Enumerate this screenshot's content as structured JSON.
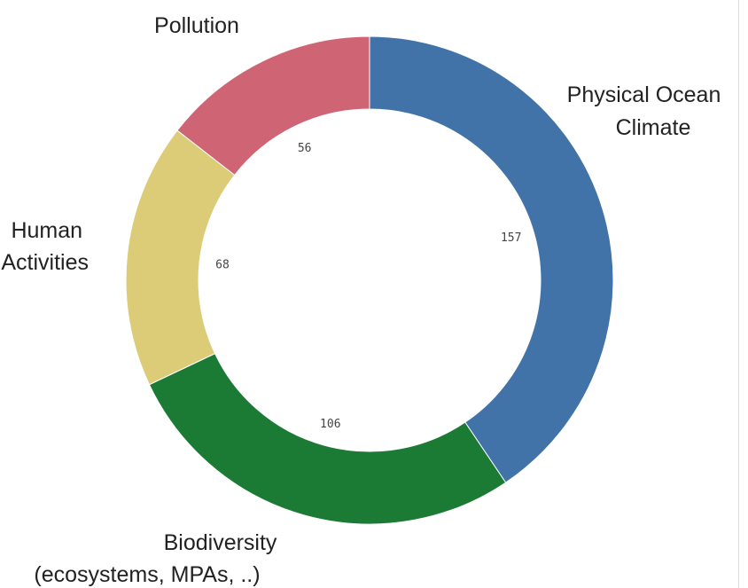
{
  "chart_data": {
    "type": "pie",
    "variant": "donut",
    "categories": [
      "Physical Ocean Climate",
      "Biodiversity (ecosystems, MPAs, ..)",
      "Human Activities",
      "Pollution"
    ],
    "values": [
      157,
      106,
      68,
      56
    ],
    "colors": [
      "#4273a8",
      "#1b7a34",
      "#dccc78",
      "#cf6474"
    ],
    "labels": [
      [
        "Physical Ocean",
        "Climate"
      ],
      [
        "Biodiversity",
        "(ecosystems, MPAs, ..)"
      ],
      [
        "Human",
        "Activities"
      ],
      [
        "Pollution"
      ]
    ],
    "start_angle": "12 o'clock",
    "direction": "clockwise",
    "legend": "none"
  }
}
